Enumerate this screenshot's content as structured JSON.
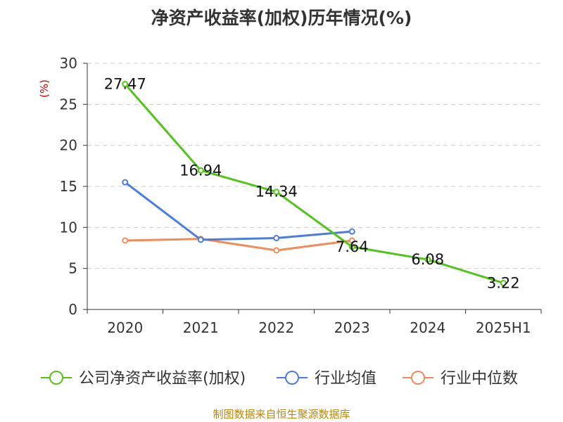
{
  "chart_data": {
    "type": "line",
    "title": "净资产收益率(加权)历年情况(%)",
    "ylabel": "(%)",
    "categories": [
      "2020",
      "2021",
      "2022",
      "2023",
      "2024",
      "2025H1"
    ],
    "ylim": [
      0,
      30
    ],
    "yticks": [
      0,
      5,
      10,
      15,
      20,
      25,
      30
    ],
    "grid": true,
    "legend_position": "bottom",
    "series": [
      {
        "name": "公司净资产收益率(加权)",
        "color": "#52c41a",
        "values": [
          27.47,
          16.94,
          14.34,
          7.64,
          6.08,
          3.22
        ],
        "labels": [
          "27.47",
          "16.94",
          "14.34",
          "7.64",
          "6.08",
          "3.22"
        ]
      },
      {
        "name": "行业均值",
        "color": "#4a7de0",
        "values": [
          15.5,
          8.5,
          8.7,
          9.5,
          null,
          null
        ]
      },
      {
        "name": "行业中位数",
        "color": "#f08c5a",
        "values": [
          8.4,
          8.6,
          7.2,
          8.4,
          null,
          null
        ]
      }
    ]
  },
  "source_text": "制图数据来自恒生聚源数据库",
  "colors": {
    "axis": "#333333",
    "grid": "#cccccc",
    "ylabel": "#cc0000",
    "source": "#b8860b"
  }
}
